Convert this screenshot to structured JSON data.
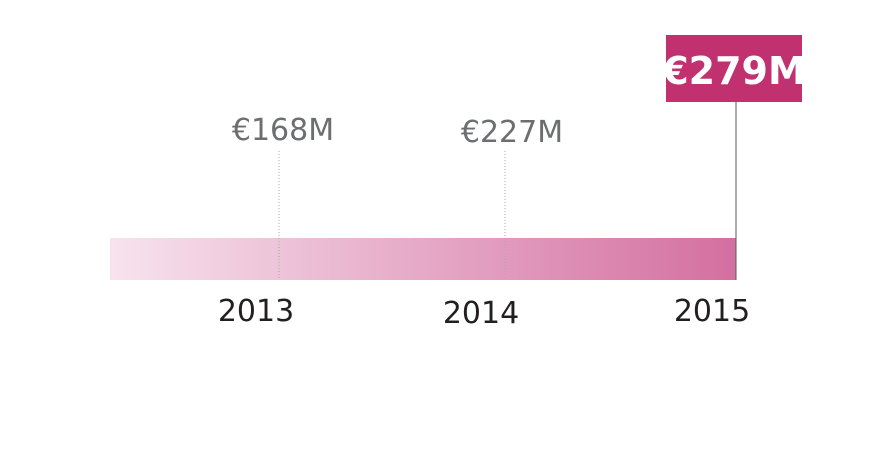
{
  "chart_data": {
    "type": "timeline-bar",
    "title": "",
    "points": [
      {
        "year": "2013",
        "value": 168,
        "label": "€168M"
      },
      {
        "year": "2014",
        "value": 227,
        "label": "€227M"
      },
      {
        "year": "2015",
        "value": 279,
        "label": "€279M",
        "highlight": true
      }
    ],
    "unit": "€M",
    "colors": {
      "accent": "#c1306f",
      "bar_start": "#f7e3ee",
      "bar_end": "#d46fa0",
      "value_text": "#6d6e71",
      "year_text": "#231f20",
      "leader_line": "#a7a9ac",
      "highlight_text": "#ffffff"
    }
  }
}
